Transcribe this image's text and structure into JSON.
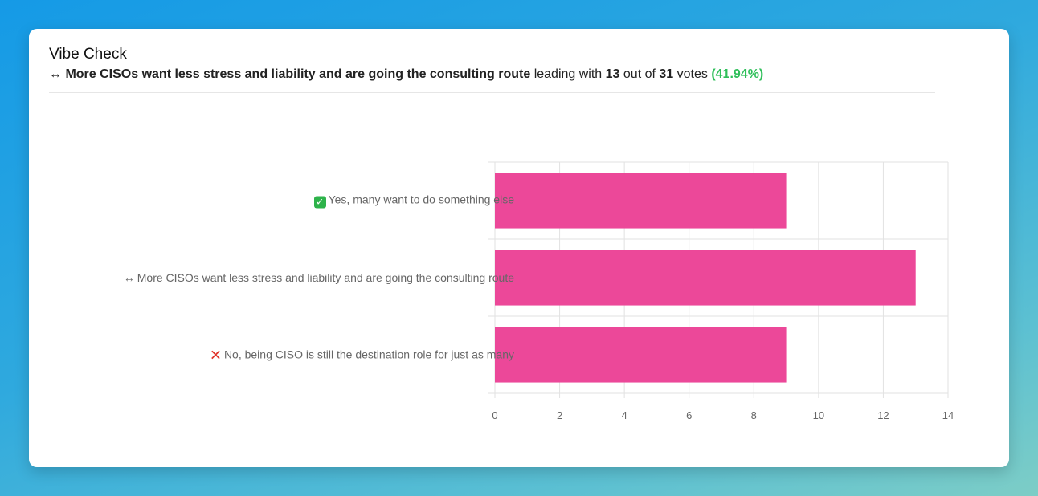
{
  "card": {
    "title": "Vibe Check",
    "subtitle": {
      "icon": "↔",
      "leading_option": "More CISOs want less stress and liability and are going the consulting route",
      "text_leading_with": "leading with",
      "votes": "13",
      "text_out_of": "out of",
      "total": "31",
      "text_votes": "votes",
      "percent": "(41.94%)",
      "percent_color": "#2fbf5a"
    }
  },
  "chart_data": {
    "type": "bar",
    "orientation": "horizontal",
    "categories": [
      {
        "icon": "check-mark-button-icon",
        "text": "Yes, many want to do something else"
      },
      {
        "icon": "left-right-arrow-icon",
        "text": "More CISOs want less stress and liability and are going the consulting route"
      },
      {
        "icon": "cross-mark-icon",
        "text": "No, being CISO is still the destination role for just as many"
      }
    ],
    "category_icon_glyphs": [
      "✓",
      "↔",
      "✕"
    ],
    "values": [
      9,
      13,
      9
    ],
    "xlim": [
      0,
      14
    ],
    "xticks": [
      0,
      2,
      4,
      6,
      8,
      10,
      12,
      14
    ],
    "bar_color": "#ec4899",
    "grid": true,
    "legend": "none"
  }
}
